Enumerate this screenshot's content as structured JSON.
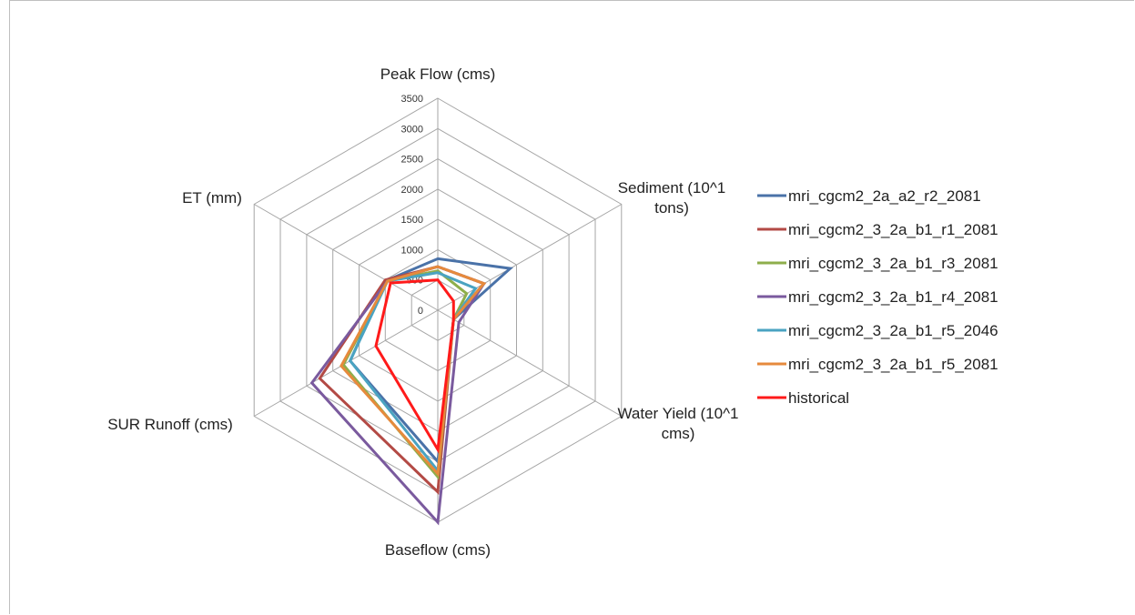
{
  "chart_data": {
    "type": "radar",
    "axes": [
      [
        "Peak Flow (cms)"
      ],
      [
        "Sediment (10^1",
        "tons)"
      ],
      [
        "Water Yield (10^1",
        "cms)"
      ],
      [
        "Baseflow (cms)"
      ],
      [
        "SUR Runoff  (cms)"
      ],
      [
        "ET (mm)"
      ]
    ],
    "rlim": [
      0,
      3500
    ],
    "ticks": [
      "0",
      "500",
      "1000",
      "1500",
      "2000",
      "2500",
      "3000",
      "3500"
    ],
    "tick_values": [
      0,
      500,
      1000,
      1500,
      2000,
      2500,
      3000,
      3500
    ],
    "grid": true,
    "legend_position": "right",
    "series": [
      {
        "name": "mri_cgcm2_2a_a2_r2_2081",
        "color": "#4a72a8",
        "values": [
          850,
          1380,
          300,
          2500,
          1670,
          980
        ]
      },
      {
        "name": "mri_cgcm2_3_2a_b1_r1_2081",
        "color": "#b34a45",
        "values": [
          720,
          880,
          300,
          3000,
          2250,
          1000
        ]
      },
      {
        "name": "mri_cgcm2_3_2a_b1_r3_2081",
        "color": "#8eae4b",
        "values": [
          650,
          550,
          300,
          2750,
          1800,
          960
        ]
      },
      {
        "name": "mri_cgcm2_3_2a_b1_r4_2081",
        "color": "#7a5a9e",
        "values": [
          720,
          880,
          400,
          3500,
          2400,
          960
        ]
      },
      {
        "name": "mri_cgcm2_3_2a_b1_r5_2046",
        "color": "#4aa3c1",
        "values": [
          620,
          720,
          300,
          2650,
          1670,
          960
        ]
      },
      {
        "name": "mri_cgcm2_3_2a_b1_r5_2081",
        "color": "#e68a3c",
        "values": [
          720,
          880,
          300,
          2700,
          1840,
          960
        ]
      },
      {
        "name": "historical",
        "color": "#ff1a1a",
        "values": [
          500,
          300,
          300,
          2300,
          1180,
          900
        ]
      }
    ]
  }
}
